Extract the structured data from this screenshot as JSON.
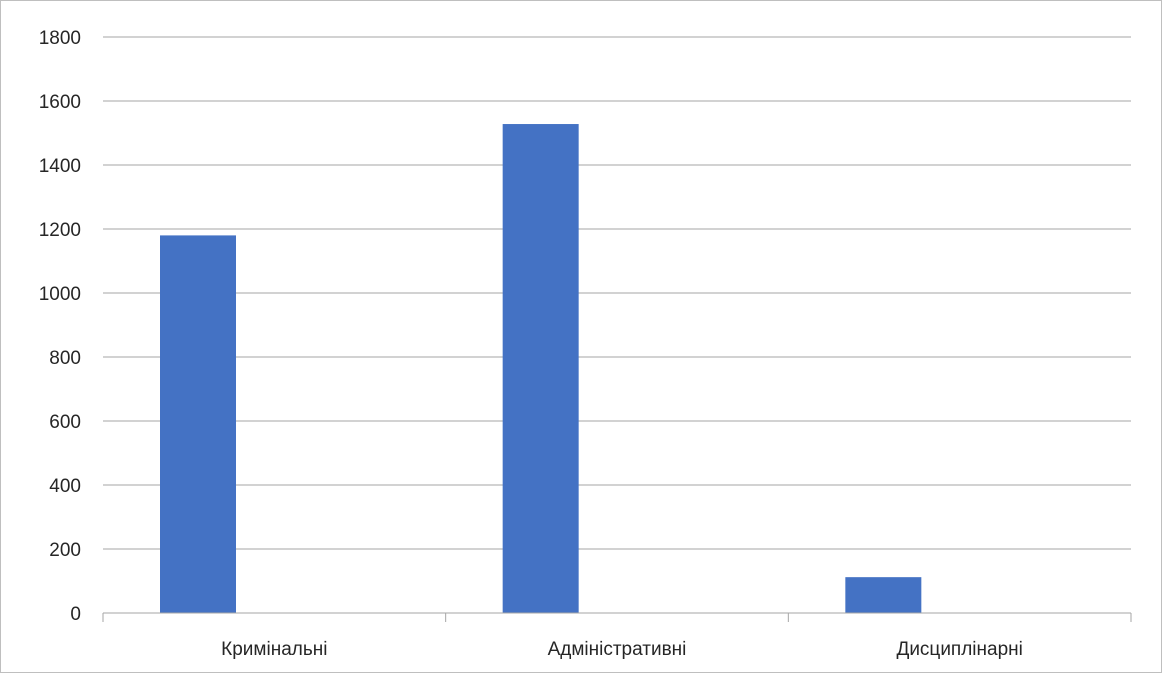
{
  "chart_data": {
    "type": "bar",
    "title": "",
    "xlabel": "",
    "ylabel": "",
    "categories": [
      "Кримінальні",
      "Адміністративні",
      "Дисциплінарні"
    ],
    "series": [
      {
        "values": [
          1180,
          1528,
          112
        ]
      },
      {
        "values": [
          0,
          0,
          0
        ]
      }
    ],
    "ylim": [
      0,
      1800
    ],
    "yticks": [
      0,
      200,
      400,
      600,
      800,
      1000,
      1200,
      1400,
      1600,
      1800
    ],
    "grid": true,
    "legend": "none",
    "colors": {
      "bar": "#4472C4",
      "grid": "#a6a6a6",
      "axis": "#a6a6a6",
      "text": "#262626"
    }
  }
}
